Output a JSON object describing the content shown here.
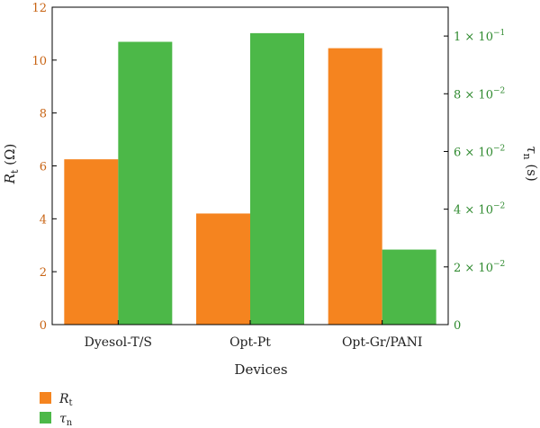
{
  "chart_data": {
    "type": "bar",
    "xlabel": "Devices",
    "categories": [
      "Dyesol-T/S",
      "Opt-Pt",
      "Opt-Gr/PANI"
    ],
    "left_axis": {
      "label_main": "R",
      "label_sub": "t",
      "label_unit": " (Ω)",
      "ylim": [
        0,
        12
      ],
      "ticks": [
        "0",
        "2",
        "4",
        "6",
        "8",
        "10",
        "12"
      ],
      "color": "#c86414"
    },
    "right_axis": {
      "label_main": "τ",
      "label_sub": "n",
      "label_unit": " (s)",
      "ylim": [
        0,
        0.11
      ],
      "ticks": [
        {
          "value": 0,
          "mant": "0",
          "exp": ""
        },
        {
          "value": 0.02,
          "mant": "2 × 10",
          "exp": "−2"
        },
        {
          "value": 0.04,
          "mant": "4 × 10",
          "exp": "−2"
        },
        {
          "value": 0.06,
          "mant": "6 × 10",
          "exp": "−2"
        },
        {
          "value": 0.08,
          "mant": "8 × 10",
          "exp": "−2"
        },
        {
          "value": 0.1,
          "mant": "1 × 10",
          "exp": "−1"
        }
      ],
      "color": "#2f8a2f"
    },
    "series": [
      {
        "name": "Rt",
        "name_main": "R",
        "name_sub": "t",
        "axis": "left",
        "color": "#f5841f",
        "values": [
          6.25,
          4.2,
          10.45
        ]
      },
      {
        "name": "τn",
        "name_main": "τ",
        "name_sub": "n",
        "axis": "right",
        "color": "#4cb848",
        "values": [
          0.098,
          0.101,
          0.026
        ]
      }
    ],
    "legend": "bottom-left",
    "grid": false
  }
}
